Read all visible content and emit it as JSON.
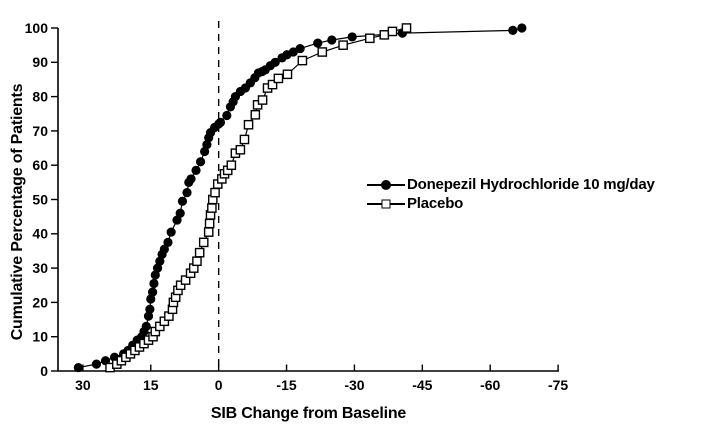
{
  "colors": {
    "background": "#ffffff",
    "axis": "#000000",
    "text": "#000000",
    "series": "#000000"
  },
  "chart_data": {
    "type": "line",
    "title": "",
    "xlabel": "SIB Change from Baseline",
    "ylabel": "Cumulative Percentage of Patients",
    "x_axis_reversed": true,
    "x_ticks": [
      30,
      15,
      0,
      -15,
      -30,
      -45,
      -60,
      -75
    ],
    "y_ticks": [
      0,
      10,
      20,
      30,
      40,
      50,
      60,
      70,
      80,
      90,
      100
    ],
    "xlim_left": 35.5,
    "xlim_right": -75.2,
    "ylim": [
      0,
      100
    ],
    "grid": false,
    "reference_line": {
      "x": 0,
      "style": "dashed"
    },
    "legend_position": "middle-right",
    "series": [
      {
        "name": "Donepezil Hydrochloride 10 mg/day",
        "marker": "filled-circle",
        "color": "#000000",
        "points": [
          [
            31,
            1
          ],
          [
            27,
            2
          ],
          [
            25,
            3
          ],
          [
            23,
            4
          ],
          [
            21,
            5
          ],
          [
            20,
            6
          ],
          [
            19,
            7.5
          ],
          [
            18,
            9
          ],
          [
            17,
            10
          ],
          [
            16.5,
            11.5
          ],
          [
            16,
            13
          ],
          [
            15.5,
            16
          ],
          [
            15.2,
            18
          ],
          [
            15,
            21
          ],
          [
            14.6,
            23
          ],
          [
            14.3,
            25.5
          ],
          [
            14,
            28
          ],
          [
            13.5,
            30
          ],
          [
            13,
            32
          ],
          [
            12.5,
            34
          ],
          [
            12,
            35.5
          ],
          [
            11.2,
            37.5
          ],
          [
            10.5,
            40.5
          ],
          [
            9.2,
            44
          ],
          [
            8.5,
            46
          ],
          [
            8,
            49.5
          ],
          [
            7,
            52
          ],
          [
            6.6,
            55
          ],
          [
            6.1,
            56
          ],
          [
            5,
            58.5
          ],
          [
            4,
            61
          ],
          [
            3.1,
            64
          ],
          [
            2.6,
            66
          ],
          [
            2.2,
            68
          ],
          [
            1.8,
            69.5
          ],
          [
            0.9,
            71
          ],
          [
            0,
            72
          ],
          [
            -0.4,
            72.5
          ],
          [
            -1.8,
            74.5
          ],
          [
            -2.6,
            77
          ],
          [
            -3.2,
            78.5
          ],
          [
            -3.7,
            80
          ],
          [
            -4.8,
            81.5
          ],
          [
            -5.9,
            82.5
          ],
          [
            -7,
            84
          ],
          [
            -8,
            85.5
          ],
          [
            -8.8,
            86.9
          ],
          [
            -9.6,
            87.3
          ],
          [
            -10.3,
            87.8
          ],
          [
            -11.4,
            89
          ],
          [
            -12.5,
            90
          ],
          [
            -14,
            91.3
          ],
          [
            -15.1,
            92.2
          ],
          [
            -16.5,
            93
          ],
          [
            -18,
            94
          ],
          [
            -21.9,
            95.6
          ],
          [
            -25,
            96.5
          ],
          [
            -29.5,
            97.4
          ],
          [
            -40.6,
            98.5
          ],
          [
            -65,
            99.3
          ],
          [
            -67,
            100
          ]
        ]
      },
      {
        "name": "Placebo",
        "marker": "open-square",
        "color": "#000000",
        "points": [
          [
            24,
            1
          ],
          [
            22.5,
            2
          ],
          [
            21.5,
            3
          ],
          [
            20.5,
            4
          ],
          [
            19.5,
            5
          ],
          [
            18.5,
            6
          ],
          [
            17.5,
            7
          ],
          [
            16.5,
            8
          ],
          [
            15.5,
            9
          ],
          [
            14.5,
            10
          ],
          [
            14,
            11.5
          ],
          [
            13,
            13
          ],
          [
            12,
            14.5
          ],
          [
            11,
            16
          ],
          [
            10.2,
            18
          ],
          [
            10,
            20
          ],
          [
            9.5,
            21.5
          ],
          [
            9,
            23.5
          ],
          [
            8.4,
            25
          ],
          [
            7.3,
            26.5
          ],
          [
            6.2,
            28.5
          ],
          [
            5.5,
            30
          ],
          [
            4.8,
            32
          ],
          [
            4.2,
            34.5
          ],
          [
            3.3,
            37.5
          ],
          [
            2.2,
            40.5
          ],
          [
            2,
            43
          ],
          [
            1.8,
            45.5
          ],
          [
            1.5,
            47.5
          ],
          [
            1.3,
            50
          ],
          [
            0.8,
            52
          ],
          [
            0.2,
            54.5
          ],
          [
            -0.7,
            56
          ],
          [
            -1.3,
            57.5
          ],
          [
            -2,
            58.5
          ],
          [
            -2.8,
            60
          ],
          [
            -3.7,
            63.5
          ],
          [
            -4.8,
            64.5
          ],
          [
            -5.7,
            67.5
          ],
          [
            -6.6,
            71.8
          ],
          [
            -8.1,
            74.7
          ],
          [
            -8.6,
            77.6
          ],
          [
            -9.7,
            79
          ],
          [
            -10.8,
            82.5
          ],
          [
            -11.9,
            83.5
          ],
          [
            -13.2,
            85.3
          ],
          [
            -15.2,
            86.5
          ],
          [
            -18.5,
            90.5
          ],
          [
            -22.9,
            93
          ],
          [
            -27.5,
            95
          ],
          [
            -33.4,
            97
          ],
          [
            -36.6,
            98
          ],
          [
            -38.4,
            99
          ],
          [
            -41.5,
            100
          ]
        ]
      }
    ]
  },
  "legend": {
    "items": [
      {
        "label": "Donepezil Hydrochloride 10 mg/day",
        "marker": "filled-circle"
      },
      {
        "label": "Placebo",
        "marker": "open-square"
      }
    ]
  }
}
